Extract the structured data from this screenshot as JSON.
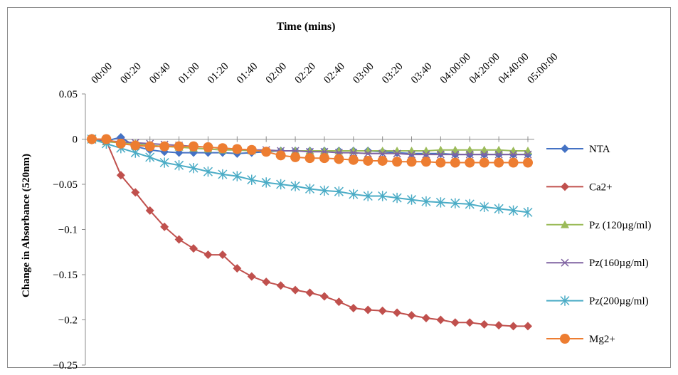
{
  "chart_data": {
    "type": "line",
    "title": "",
    "xlabel": "Time  (mins)",
    "ylabel": "Change  in Absorbance (520nm)",
    "x_axis_position": "top",
    "ylim": [
      -0.25,
      0.05
    ],
    "yticks": [
      0.05,
      0,
      -0.05,
      -0.1,
      -0.15,
      -0.2,
      -0.25
    ],
    "ytick_labels": [
      "0.05",
      "0",
      "−0.05",
      "−0.1",
      "−0.15",
      "−0.2",
      "−0.25"
    ],
    "xtick_labels": [
      "00:00",
      "00:20",
      "00:40",
      "01:00",
      "01:20",
      "01:40",
      "02:00",
      "02:20",
      "02:40",
      "03:00",
      "03:20",
      "03:40",
      "04:00:00",
      "04:20:00",
      "04:40:00",
      "05:00:00"
    ],
    "point_count": 31,
    "grid": false,
    "legend_position": "right",
    "series": [
      {
        "name": "NTA",
        "color": "#4472C4",
        "marker": "diamond",
        "values": [
          0,
          -0.002,
          0.002,
          -0.008,
          -0.012,
          -0.014,
          -0.015,
          -0.015,
          -0.015,
          -0.015,
          -0.016,
          -0.015,
          -0.014,
          -0.013,
          -0.013,
          -0.013,
          -0.013,
          -0.013,
          -0.013,
          -0.013,
          -0.014,
          -0.015,
          -0.016,
          -0.016,
          -0.016,
          -0.017,
          -0.017,
          -0.017,
          -0.017,
          -0.017,
          -0.017
        ]
      },
      {
        "name": "Ca2+",
        "color": "#C0504D",
        "marker": "diamond",
        "values": [
          0,
          -0.002,
          -0.04,
          -0.059,
          -0.079,
          -0.097,
          -0.111,
          -0.121,
          -0.128,
          -0.128,
          -0.143,
          -0.152,
          -0.158,
          -0.162,
          -0.167,
          -0.17,
          -0.174,
          -0.18,
          -0.187,
          -0.189,
          -0.19,
          -0.192,
          -0.195,
          -0.198,
          -0.2,
          -0.203,
          -0.203,
          -0.205,
          -0.206,
          -0.207,
          -0.207
        ]
      },
      {
        "name": "Pz (120µg/ml)",
        "color": "#9BBB59",
        "marker": "triangle",
        "values": [
          0,
          -0.003,
          -0.004,
          -0.005,
          -0.007,
          -0.008,
          -0.009,
          -0.01,
          -0.011,
          -0.012,
          -0.012,
          -0.013,
          -0.013,
          -0.013,
          -0.013,
          -0.013,
          -0.013,
          -0.013,
          -0.013,
          -0.013,
          -0.013,
          -0.013,
          -0.013,
          -0.013,
          -0.012,
          -0.012,
          -0.012,
          -0.012,
          -0.012,
          -0.013,
          -0.013
        ]
      },
      {
        "name": "Pz(160µg/ml)",
        "color": "#8064A2",
        "marker": "x",
        "values": [
          0,
          -0.002,
          -0.003,
          -0.004,
          -0.005,
          -0.006,
          -0.007,
          -0.008,
          -0.009,
          -0.01,
          -0.011,
          -0.012,
          -0.012,
          -0.013,
          -0.013,
          -0.014,
          -0.014,
          -0.015,
          -0.015,
          -0.016,
          -0.016,
          -0.016,
          -0.017,
          -0.017,
          -0.017,
          -0.017,
          -0.017,
          -0.017,
          -0.017,
          -0.017,
          -0.017
        ]
      },
      {
        "name": "Pz(200µg/ml)",
        "color": "#4BACC6",
        "marker": "star",
        "values": [
          0,
          -0.005,
          -0.01,
          -0.015,
          -0.02,
          -0.026,
          -0.029,
          -0.032,
          -0.036,
          -0.039,
          -0.041,
          -0.045,
          -0.048,
          -0.05,
          -0.052,
          -0.055,
          -0.057,
          -0.058,
          -0.061,
          -0.063,
          -0.063,
          -0.065,
          -0.067,
          -0.069,
          -0.07,
          -0.071,
          -0.072,
          -0.075,
          -0.077,
          -0.079,
          -0.081
        ]
      },
      {
        "name": "Mg2+",
        "color": "#ED7D31",
        "marker": "circle",
        "values": [
          0,
          0,
          -0.005,
          -0.007,
          -0.008,
          -0.008,
          -0.008,
          -0.008,
          -0.009,
          -0.01,
          -0.011,
          -0.012,
          -0.014,
          -0.018,
          -0.02,
          -0.021,
          -0.021,
          -0.022,
          -0.023,
          -0.024,
          -0.024,
          -0.025,
          -0.025,
          -0.025,
          -0.026,
          -0.026,
          -0.026,
          -0.026,
          -0.026,
          -0.026,
          -0.026
        ]
      }
    ]
  }
}
